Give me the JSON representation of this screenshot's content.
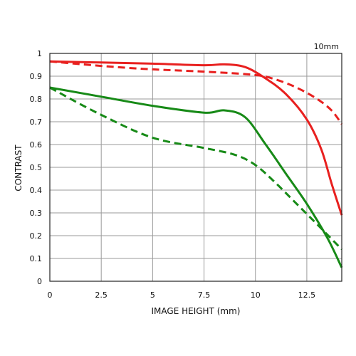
{
  "chart_data": {
    "type": "line",
    "title": "10mm",
    "xlabel": "IMAGE HEIGHT (mm)",
    "ylabel": "CONTRAST",
    "xlim": [
      0,
      14.2
    ],
    "ylim": [
      0,
      1
    ],
    "grid": true,
    "x_ticks": [
      0,
      2.5,
      5,
      7.5,
      10,
      12.5
    ],
    "x_tick_labels": [
      "0",
      "2.5",
      "5",
      "7.5",
      "10",
      "12.5"
    ],
    "y_ticks": [
      0,
      0.1,
      0.2,
      0.3,
      0.4,
      0.5,
      0.6,
      0.7,
      0.8,
      0.9,
      1
    ],
    "y_tick_labels": [
      "0",
      "0.1",
      "0.2",
      "0.3",
      "0.4",
      "0.5",
      "0.6",
      "0.7",
      "0.8",
      "0.9",
      "1"
    ],
    "series": [
      {
        "color": "#e8201f",
        "dash": "solid",
        "x": [
          0,
          2.5,
          5,
          7.5,
          8.5,
          9.5,
          10.5,
          11.5,
          12.5,
          13.2,
          13.7,
          14.2
        ],
        "y": [
          0.965,
          0.96,
          0.955,
          0.948,
          0.952,
          0.94,
          0.89,
          0.82,
          0.71,
          0.58,
          0.43,
          0.29
        ]
      },
      {
        "color": "#e8201f",
        "dash": "dashed",
        "x": [
          0,
          2.5,
          5,
          7.5,
          10,
          11,
          12,
          13,
          13.7,
          14.2
        ],
        "y": [
          0.965,
          0.945,
          0.93,
          0.92,
          0.905,
          0.885,
          0.85,
          0.8,
          0.75,
          0.69
        ]
      },
      {
        "color": "#178a17",
        "dash": "solid",
        "x": [
          0,
          2.5,
          5,
          7.5,
          8.5,
          9.5,
          10.5,
          11.5,
          12.5,
          13.5,
          14.2
        ],
        "y": [
          0.85,
          0.81,
          0.77,
          0.74,
          0.75,
          0.72,
          0.6,
          0.47,
          0.34,
          0.19,
          0.06
        ]
      },
      {
        "color": "#178a17",
        "dash": "dashed",
        "x": [
          0,
          2.5,
          5,
          7.5,
          9,
          10,
          11,
          12,
          13,
          14.2
        ],
        "y": [
          0.85,
          0.73,
          0.63,
          0.585,
          0.555,
          0.51,
          0.43,
          0.34,
          0.25,
          0.14
        ]
      }
    ]
  }
}
